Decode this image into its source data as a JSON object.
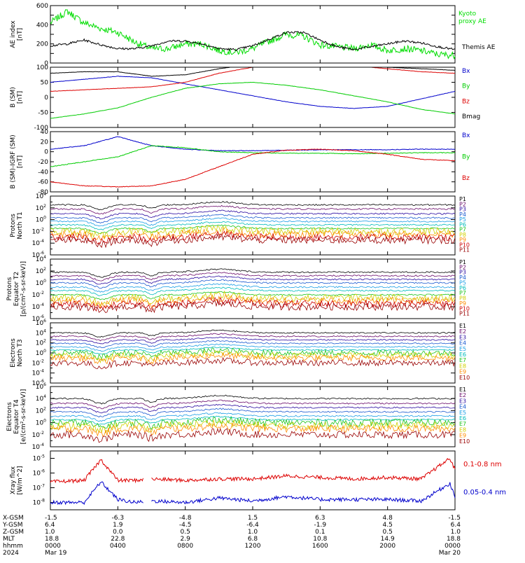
{
  "chart_data": [
    {
      "type": "line",
      "ylabel": [
        "AE index",
        "[nT]"
      ],
      "ylim": [
        0,
        600
      ],
      "yticks": [
        "0",
        "100",
        "200",
        "300",
        "400",
        "500",
        "600"
      ],
      "yticks_labeled": [
        "0",
        "200",
        "400",
        "600"
      ],
      "series": [
        {
          "name": "Kyoto proxy AE",
          "color": "#00dd00",
          "x": [
            0,
            1,
            2,
            3,
            4,
            5,
            6,
            7,
            8,
            9,
            10,
            11,
            12,
            13,
            14,
            15,
            16,
            17,
            18,
            19,
            20,
            21,
            22,
            23,
            24
          ],
          "values": [
            420,
            540,
            420,
            360,
            320,
            220,
            150,
            150,
            200,
            200,
            130,
            110,
            150,
            230,
            300,
            280,
            190,
            170,
            150,
            190,
            130,
            150,
            130,
            90,
            80
          ]
        },
        {
          "name": "Themis AE",
          "color": "#000000",
          "x": [
            0,
            1,
            2,
            3,
            4,
            5,
            6,
            7,
            8,
            9,
            10,
            11,
            12,
            13,
            14,
            15,
            16,
            17,
            18,
            19,
            20,
            21,
            22,
            23,
            24
          ],
          "values": [
            180,
            200,
            240,
            190,
            150,
            150,
            180,
            230,
            230,
            200,
            150,
            140,
            180,
            250,
            320,
            320,
            240,
            170,
            140,
            170,
            200,
            230,
            210,
            170,
            140
          ]
        }
      ]
    },
    {
      "type": "line",
      "ylabel": [
        "B (SM)",
        "[nT]"
      ],
      "ylim": [
        -100,
        100
      ],
      "yticks": [
        "-100",
        "-50",
        "0",
        "50",
        "100"
      ],
      "series": [
        {
          "name": "Bx",
          "color": "#0000cc",
          "x": [
            0,
            2,
            4,
            6,
            8,
            10,
            12,
            14,
            16,
            18,
            20,
            22,
            24
          ],
          "values": [
            50,
            60,
            70,
            65,
            45,
            25,
            5,
            -15,
            -30,
            -37,
            -30,
            -5,
            20
          ]
        },
        {
          "name": "By",
          "color": "#00cc00",
          "x": [
            0,
            2,
            4,
            6,
            8,
            10,
            12,
            14,
            16,
            18,
            20,
            22,
            24
          ],
          "values": [
            -70,
            -55,
            -35,
            0,
            30,
            45,
            50,
            40,
            25,
            5,
            -15,
            -40,
            -55
          ]
        },
        {
          "name": "Bz",
          "color": "#dd0000",
          "x": [
            0,
            2,
            4,
            6,
            8,
            10,
            12,
            14,
            16,
            18,
            20,
            22,
            24
          ],
          "values": [
            20,
            25,
            30,
            35,
            50,
            80,
            100,
            110,
            110,
            105,
            95,
            85,
            80
          ]
        },
        {
          "name": "Bmag",
          "color": "#000000",
          "x": [
            0,
            2,
            4,
            6,
            8,
            10,
            12,
            14,
            16,
            18,
            20,
            22,
            24
          ],
          "values": [
            80,
            85,
            85,
            70,
            75,
            95,
            110,
            115,
            115,
            110,
            100,
            95,
            90
          ]
        }
      ]
    },
    {
      "type": "line",
      "ylabel": [
        "B (SM)-IGRF (SM)",
        "[nT]"
      ],
      "ylim": [
        -80,
        40
      ],
      "yticks": [
        "-80",
        "-60",
        "-40",
        "-20",
        "0",
        "20",
        "40"
      ],
      "series": [
        {
          "name": "Bx",
          "color": "#0000cc",
          "x": [
            0,
            2,
            4,
            6,
            8,
            10,
            12,
            14,
            16,
            18,
            20,
            22,
            24
          ],
          "values": [
            5,
            12,
            30,
            12,
            5,
            2,
            2,
            3,
            4,
            4,
            4,
            5,
            5
          ]
        },
        {
          "name": "By",
          "color": "#00cc00",
          "x": [
            0,
            2,
            4,
            6,
            8,
            10,
            12,
            14,
            16,
            18,
            20,
            22,
            24
          ],
          "values": [
            -30,
            -20,
            -10,
            12,
            8,
            0,
            -2,
            -3,
            -3,
            -4,
            -3,
            -2,
            -2
          ]
        },
        {
          "name": "Bz",
          "color": "#dd0000",
          "x": [
            0,
            2,
            4,
            6,
            8,
            10,
            12,
            14,
            16,
            18,
            20,
            22,
            24
          ],
          "values": [
            -60,
            -68,
            -70,
            -68,
            -55,
            -30,
            -5,
            3,
            5,
            2,
            -5,
            -15,
            -18
          ]
        }
      ]
    },
    {
      "type": "line",
      "log": true,
      "ylabel": [
        "Protons",
        "North T1"
      ],
      "ylim_exp": [
        -6,
        4
      ],
      "ytick_exps": [
        -6,
        -4,
        -2,
        0,
        2,
        4
      ],
      "series_style": "log-flux-channels",
      "channels": [
        {
          "name": "P1",
          "color": "#000000",
          "level": 2.5
        },
        {
          "name": "P2",
          "color": "#6a0a6a",
          "level": 1.8
        },
        {
          "name": "P3",
          "color": "#2a0aa0",
          "level": 1.0
        },
        {
          "name": "P4",
          "color": "#1a5ad0",
          "level": 0.3
        },
        {
          "name": "P5",
          "color": "#1a9ee6",
          "level": -0.3
        },
        {
          "name": "P6",
          "color": "#00bbbb",
          "level": -0.9
        },
        {
          "name": "P7",
          "color": "#1cc41c",
          "level": -1.5
        },
        {
          "name": "P8",
          "color": "#d0d000",
          "level": -2.0
        },
        {
          "name": "P9",
          "color": "#ff8c00",
          "level": -2.5
        },
        {
          "name": "P10",
          "color": "#cc0000",
          "level": -3.0
        },
        {
          "name": "P11",
          "color": "#990000",
          "level": -3.5
        }
      ]
    },
    {
      "type": "line",
      "log": true,
      "ylabel": [
        "Protons",
        "Equator T2",
        "[p/(cm²-s-sr-keV)]"
      ],
      "ylim_exp": [
        -6,
        4
      ],
      "ytick_exps": [
        -6,
        -4,
        -2,
        0,
        2,
        4
      ],
      "series_style": "log-flux-channels",
      "channels": [
        {
          "name": "P1",
          "color": "#000000",
          "level": 1.8
        },
        {
          "name": "P2",
          "color": "#6a0a6a",
          "level": 1.2
        },
        {
          "name": "P3",
          "color": "#2a0aa0",
          "level": 0.6
        },
        {
          "name": "P4",
          "color": "#1a5ad0",
          "level": 0.0
        },
        {
          "name": "P5",
          "color": "#1a9ee6",
          "level": -0.7
        },
        {
          "name": "P6",
          "color": "#00bbbb",
          "level": -1.3
        },
        {
          "name": "P7",
          "color": "#1cc41c",
          "level": -2.0
        },
        {
          "name": "P8",
          "color": "#d0d000",
          "level": -2.5
        },
        {
          "name": "P9",
          "color": "#ff8c00",
          "level": -3.0
        },
        {
          "name": "P10",
          "color": "#cc0000",
          "level": -3.5
        },
        {
          "name": "P11",
          "color": "#990000",
          "level": -4.0
        }
      ]
    },
    {
      "type": "line",
      "log": true,
      "ylabel": [
        "Electrons",
        "North T3"
      ],
      "ylim_exp": [
        -6,
        6
      ],
      "ytick_exps": [
        -6,
        -4,
        -2,
        0,
        2,
        4,
        6
      ],
      "series_style": "log-flux-channels",
      "channels": [
        {
          "name": "E1",
          "color": "#000000",
          "level": 4.0
        },
        {
          "name": "E2",
          "color": "#6a0a6a",
          "level": 3.3
        },
        {
          "name": "E3",
          "color": "#2a0aa0",
          "level": 2.6
        },
        {
          "name": "E4",
          "color": "#1a5ad0",
          "level": 1.9
        },
        {
          "name": "E5",
          "color": "#1a9ee6",
          "level": 1.2
        },
        {
          "name": "E6",
          "color": "#00bbbb",
          "level": 0.6
        },
        {
          "name": "E7",
          "color": "#1cc41c",
          "level": 0.0
        },
        {
          "name": "E8",
          "color": "#d0d000",
          "level": -0.5
        },
        {
          "name": "E9",
          "color": "#ff8c00",
          "level": -1.0
        },
        {
          "name": "E10",
          "color": "#990000",
          "level": -2.0
        }
      ]
    },
    {
      "type": "line",
      "log": true,
      "ylabel": [
        "Electrons",
        "Equator T4",
        "[e/(cm²-s-sr-keV)]"
      ],
      "ylim_exp": [
        -4,
        6
      ],
      "ytick_exps": [
        -4,
        -2,
        0,
        2,
        4,
        6
      ],
      "series_style": "log-flux-channels",
      "channels": [
        {
          "name": "E1",
          "color": "#000000",
          "level": 4.0
        },
        {
          "name": "E2",
          "color": "#6a0a6a",
          "level": 3.2
        },
        {
          "name": "E3",
          "color": "#2a0aa0",
          "level": 2.5
        },
        {
          "name": "E4",
          "color": "#1a5ad0",
          "level": 1.8
        },
        {
          "name": "E5",
          "color": "#1a9ee6",
          "level": 1.1
        },
        {
          "name": "E6",
          "color": "#00bbbb",
          "level": 0.5
        },
        {
          "name": "E7",
          "color": "#1cc41c",
          "level": 0.0
        },
        {
          "name": "E8",
          "color": "#d0d000",
          "level": -0.5
        },
        {
          "name": "E9",
          "color": "#ff8c00",
          "level": -1.0
        },
        {
          "name": "E10",
          "color": "#990000",
          "level": -2.0
        }
      ]
    },
    {
      "type": "line",
      "log": true,
      "ylabel": [
        "Xray flux",
        "[W/m^2]"
      ],
      "ylim_exp": [
        -8.5,
        -4.5
      ],
      "ytick_exps": [
        -8,
        -7,
        -6,
        -5
      ],
      "series": [
        {
          "name": "0.1-0.8 nm",
          "color": "#dd0000",
          "x": [
            0,
            2,
            3,
            4,
            5,
            6,
            8,
            10,
            12,
            14,
            16,
            18,
            20,
            22,
            23.7,
            24
          ],
          "values_exp": [
            -6.6,
            -6.5,
            -5.1,
            -6.5,
            -6.5,
            -6.4,
            -6.5,
            -6.4,
            -6.4,
            -6.2,
            -6.3,
            -6.4,
            -6.3,
            -6.4,
            -5.0,
            -5.8
          ]
        },
        {
          "name": "0.05-0.4 nm",
          "color": "#0000cc",
          "x": [
            0,
            2,
            3,
            4,
            5,
            6,
            8,
            10,
            12,
            14,
            16,
            18,
            20,
            22,
            23.7,
            24
          ],
          "values_exp": [
            -8.0,
            -8.0,
            -6.6,
            -7.8,
            -8.0,
            -7.9,
            -8.0,
            -7.7,
            -7.9,
            -7.6,
            -7.8,
            -7.8,
            -7.8,
            -7.9,
            -6.7,
            -7.6
          ]
        }
      ],
      "gap_x": [
        5.5,
        6.0
      ]
    }
  ],
  "x_axis": {
    "range_hours": [
      0,
      24
    ],
    "tick_hours": [
      0,
      4,
      8,
      12,
      16,
      20,
      24
    ],
    "rows": [
      {
        "label": "X-GSM",
        "values": [
          "-1.5",
          "-6.3",
          "-4.8",
          "1.5",
          "6.3",
          "4.8",
          "-1.5"
        ]
      },
      {
        "label": "Y-GSM",
        "values": [
          "6.4",
          "1.9",
          "-4.5",
          "-6.4",
          "-1.9",
          "4.5",
          "6.4"
        ]
      },
      {
        "label": "Z-GSM",
        "values": [
          "1.0",
          "0.0",
          "0.5",
          "1.0",
          "0.1",
          "0.5",
          "1.0"
        ]
      },
      {
        "label": "MLT",
        "values": [
          "18.8",
          "22.8",
          "2.9",
          "6.8",
          "10.8",
          "14.9",
          "18.8"
        ]
      },
      {
        "label": "hhmm",
        "values": [
          "0000",
          "0400",
          "0800",
          "1200",
          "1600",
          "2000",
          "0000"
        ]
      },
      {
        "label": "2024",
        "values": [
          "Mar 19",
          "",
          "",
          "",
          "",
          "",
          "Mar 20"
        ]
      }
    ]
  }
}
